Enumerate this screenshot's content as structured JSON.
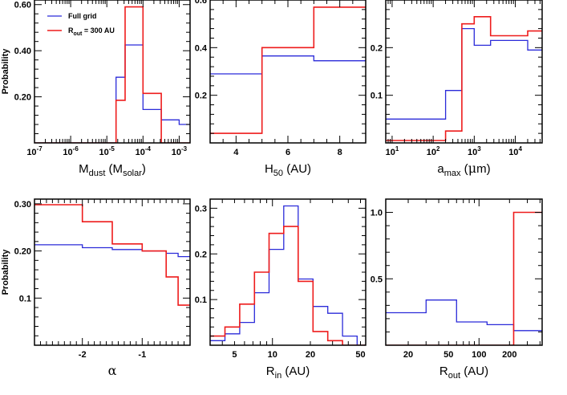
{
  "colors": {
    "full_grid": "#2b2bd9",
    "rout_300": "#ee1c1c"
  },
  "legend": {
    "full_grid": "Full grid",
    "rout_prefix": "R",
    "rout_sub": "out",
    "rout_suffix": " = 300 AU"
  },
  "chart_data": [
    {
      "id": "p1",
      "type": "histogram",
      "xscale": "log",
      "xlim": [
        1e-07,
        0.002
      ],
      "ylim": [
        0,
        0.62
      ],
      "xlabel": {
        "main": "M",
        "sub": "dust",
        "mid": " (M",
        "sub2": "solar",
        "end": ")"
      },
      "ylabel": "Probability",
      "xticks": [
        {
          "v": 1e-07,
          "label": "10",
          "exp": "-7"
        },
        {
          "v": 1e-06,
          "label": "10",
          "exp": "-6"
        },
        {
          "v": 1e-05,
          "label": "10",
          "exp": "-5"
        },
        {
          "v": 0.0001,
          "label": "10",
          "exp": "-4"
        },
        {
          "v": 0.001,
          "label": "10",
          "exp": "-3"
        }
      ],
      "yticks": [
        {
          "v": 0.2,
          "label": "0.20"
        },
        {
          "v": 0.4,
          "label": "0.40"
        },
        {
          "v": 0.6,
          "label": "0.60"
        }
      ],
      "edges": [
        1e-07,
        1.8e-07,
        3.2e-07,
        5.6e-07,
        1e-06,
        1.8e-06,
        3.2e-06,
        5.6e-06,
        1e-05,
        1.8e-05,
        3.2e-05,
        5.6e-05,
        0.0001,
        0.00018,
        0.00032,
        0.00056,
        0.001,
        0.002
      ],
      "series": [
        {
          "name": "Full grid",
          "values": [
            0,
            0,
            0,
            0,
            0,
            0,
            0,
            0,
            0,
            0.285,
            0.425,
            0.425,
            0.145,
            0.145,
            0.1,
            0.1,
            0.08
          ]
        },
        {
          "name": "Rout = 300 AU",
          "values": [
            0,
            0,
            0,
            0,
            0,
            0,
            0,
            0,
            0,
            0.185,
            0.59,
            0.59,
            0.215,
            0.215,
            0,
            0,
            0
          ]
        }
      ]
    },
    {
      "id": "p2",
      "type": "histogram",
      "xscale": "linear",
      "xlim": [
        3,
        9
      ],
      "ylim": [
        0,
        0.6
      ],
      "xlabel": {
        "main": "H",
        "sub": "50",
        "end": " (AU)"
      },
      "xticks": [
        {
          "v": 4,
          "label": "4"
        },
        {
          "v": 6,
          "label": "6"
        },
        {
          "v": 8,
          "label": "8"
        }
      ],
      "yticks": [
        {
          "v": 0.2,
          "label": "0.2"
        },
        {
          "v": 0.4,
          "label": "0.4"
        },
        {
          "v": 0.6,
          "label": "0.6"
        }
      ],
      "edges": [
        3,
        5,
        7,
        9
      ],
      "series": [
        {
          "name": "Full grid",
          "values": [
            0.29,
            0.365,
            0.345
          ]
        },
        {
          "name": "Rout = 300 AU",
          "values": [
            0.04,
            0.4,
            0.57
          ]
        }
      ]
    },
    {
      "id": "p3",
      "type": "histogram",
      "xscale": "log",
      "xlim": [
        7,
        45000
      ],
      "ylim": [
        0,
        0.3
      ],
      "xlabel": {
        "main": "a",
        "sub": "max",
        "mid": " (",
        "sym": "μ",
        "end": "m)"
      },
      "xticks": [
        {
          "v": 10,
          "label": "10",
          "exp": "1"
        },
        {
          "v": 100,
          "label": "10",
          "exp": "2"
        },
        {
          "v": 1000,
          "label": "10",
          "exp": "3"
        },
        {
          "v": 10000,
          "label": "10",
          "exp": "4"
        }
      ],
      "yticks": [
        {
          "v": 0.1,
          "label": "0.1"
        },
        {
          "v": 0.2,
          "label": "0.2"
        }
      ],
      "edges": [
        7,
        200,
        500,
        1000,
        2500,
        6000,
        20000,
        45000
      ],
      "series": [
        {
          "name": "Full grid",
          "values": [
            0.05,
            0.11,
            0.24,
            0.205,
            0.215,
            0.215,
            0.195
          ]
        },
        {
          "name": "Rout = 300 AU",
          "values": [
            0.005,
            0.025,
            0.25,
            0.265,
            0.225,
            0.225,
            0.235
          ]
        }
      ]
    },
    {
      "id": "p4",
      "type": "histogram",
      "xscale": "linear",
      "xlim": [
        -2.8,
        -0.2
      ],
      "ylim": [
        0,
        0.31
      ],
      "xlabel": {
        "sym": "α"
      },
      "ylabel": "Probability",
      "xticks": [
        {
          "v": -2,
          "label": "-2"
        },
        {
          "v": -1,
          "label": "-1"
        }
      ],
      "yticks": [
        {
          "v": 0.1,
          "label": "0.1"
        },
        {
          "v": 0.2,
          "label": "0.20"
        },
        {
          "v": 0.3,
          "label": "0.30"
        }
      ],
      "edges": [
        -2.8,
        -2.0,
        -1.5,
        -1.0,
        -0.6,
        -0.4,
        -0.2
      ],
      "series": [
        {
          "name": "Full grid",
          "values": [
            0.213,
            0.207,
            0.203,
            0.2,
            0.195,
            0.188
          ]
        },
        {
          "name": "Rout = 300 AU",
          "values": [
            0.298,
            0.262,
            0.215,
            0.2,
            0.145,
            0.085
          ]
        }
      ]
    },
    {
      "id": "p5",
      "type": "histogram",
      "xscale": "log",
      "xlim": [
        3.2,
        55
      ],
      "ylim": [
        0,
        0.32
      ],
      "xlabel": {
        "main": "R",
        "sub": "in",
        "end": " (AU)"
      },
      "xticks": [
        {
          "v": 5,
          "label": "5"
        },
        {
          "v": 10,
          "label": "10"
        },
        {
          "v": 20,
          "label": "20"
        },
        {
          "v": 50,
          "label": "50"
        }
      ],
      "yticks": [
        {
          "v": 0.1,
          "label": "0.1"
        },
        {
          "v": 0.2,
          "label": "0.2"
        },
        {
          "v": 0.3,
          "label": "0.3"
        }
      ],
      "edges": [
        3.2,
        4.2,
        5.5,
        7.2,
        9.4,
        12.3,
        16,
        21,
        27.5,
        36,
        47,
        55
      ],
      "series": [
        {
          "name": "Full grid",
          "values": [
            0.01,
            0.025,
            0.05,
            0.115,
            0.21,
            0.305,
            0.145,
            0.085,
            0.07,
            0.02,
            0.0
          ]
        },
        {
          "name": "Rout = 300 AU",
          "values": [
            0.02,
            0.04,
            0.09,
            0.16,
            0.245,
            0.26,
            0.14,
            0.03,
            0.01,
            0.0,
            0.0
          ]
        }
      ]
    },
    {
      "id": "p6",
      "type": "histogram",
      "xscale": "log",
      "xlim": [
        12,
        420
      ],
      "ylim": [
        0,
        1.1
      ],
      "xlabel": {
        "main": "R",
        "sub": "out",
        "end": " (AU)"
      },
      "xticks": [
        {
          "v": 20,
          "label": "20"
        },
        {
          "v": 50,
          "label": "50"
        },
        {
          "v": 100,
          "label": "100"
        },
        {
          "v": 200,
          "label": "200"
        }
      ],
      "yticks": [
        {
          "v": 0.5,
          "label": "0.5"
        },
        {
          "v": 1.0,
          "label": "1.0"
        }
      ],
      "edges": [
        12,
        30,
        60,
        120,
        220,
        420
      ],
      "series": [
        {
          "name": "Full grid",
          "values": [
            0.245,
            0.34,
            0.175,
            0.155,
            0.11
          ]
        },
        {
          "name": "Rout = 300 AU",
          "values": [
            0,
            0,
            0,
            0,
            1.0
          ]
        }
      ]
    }
  ]
}
